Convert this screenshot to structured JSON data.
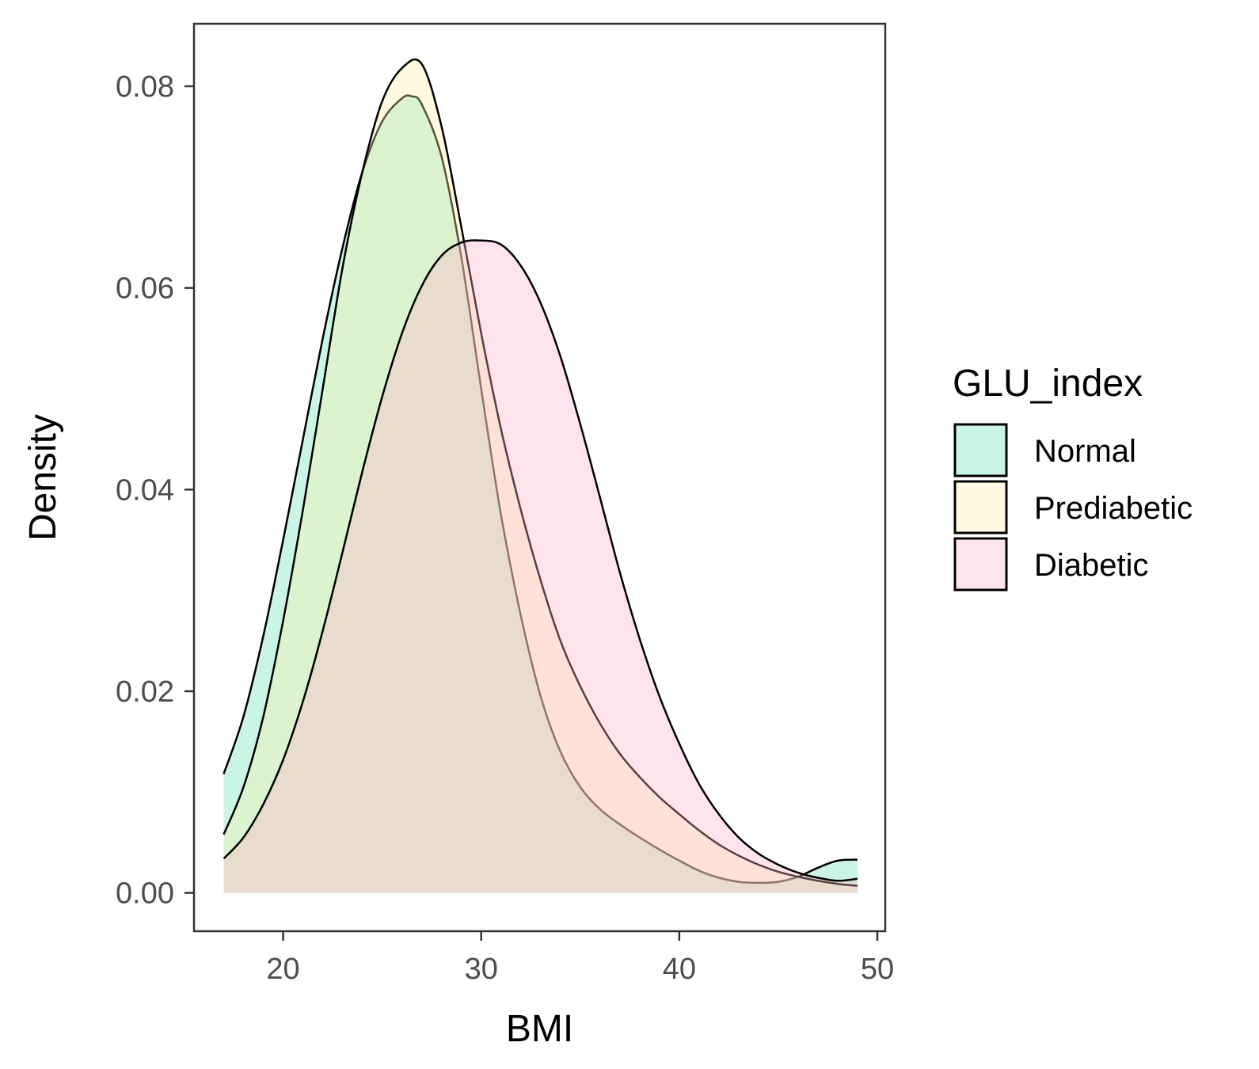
{
  "chart_data": {
    "type": "area",
    "subtype": "density",
    "title": "",
    "xlabel": "BMI",
    "ylabel": "Density",
    "xlim": [
      15.5,
      50.4
    ],
    "ylim": [
      -0.0038,
      0.0862
    ],
    "xticks": [
      "20",
      "30",
      "40",
      "50"
    ],
    "yticks": [
      "0.00",
      "0.02",
      "0.04",
      "0.06",
      "0.08"
    ],
    "grid": false,
    "legend": {
      "title": "GLU_index",
      "position": "right"
    },
    "fill_opacity": 0.35,
    "series": [
      {
        "name": "Normal",
        "color": "#66E0B0",
        "x": [
          17,
          18,
          19,
          20,
          21,
          22,
          23,
          24,
          25,
          26,
          26.5,
          27,
          28,
          29,
          30,
          31,
          32,
          33,
          34,
          35,
          36,
          37,
          38,
          39,
          40,
          41,
          42,
          43,
          44,
          45,
          46,
          47,
          48,
          49
        ],
        "values": [
          0.0118,
          0.0175,
          0.0255,
          0.035,
          0.045,
          0.055,
          0.064,
          0.0715,
          0.0765,
          0.0788,
          0.079,
          0.0782,
          0.073,
          0.063,
          0.05,
          0.0375,
          0.0275,
          0.0195,
          0.014,
          0.0105,
          0.0083,
          0.0068,
          0.0055,
          0.0043,
          0.0032,
          0.0022,
          0.0015,
          0.0011,
          0.001,
          0.0011,
          0.0016,
          0.0025,
          0.0032,
          0.0033
        ]
      },
      {
        "name": "Prediabetic",
        "color": "#FFF0A8",
        "x": [
          17,
          18,
          19,
          20,
          21,
          22,
          23,
          24,
          25,
          26,
          27,
          28,
          29,
          30,
          31,
          32,
          33,
          34,
          35,
          36,
          37,
          38,
          39,
          40,
          41,
          42,
          43,
          44,
          45,
          46,
          47,
          48,
          49
        ],
        "values": [
          0.0058,
          0.0105,
          0.0175,
          0.027,
          0.038,
          0.05,
          0.062,
          0.0715,
          0.0785,
          0.0818,
          0.0822,
          0.076,
          0.066,
          0.0555,
          0.046,
          0.038,
          0.031,
          0.025,
          0.0205,
          0.0168,
          0.0138,
          0.0115,
          0.0095,
          0.0078,
          0.0062,
          0.0048,
          0.0037,
          0.0028,
          0.0021,
          0.0016,
          0.0012,
          0.0009,
          0.0007
        ]
      },
      {
        "name": "Diabetic",
        "color": "#FFB3C6",
        "x": [
          17,
          18,
          19,
          20,
          21,
          22,
          23,
          24,
          25,
          26,
          27,
          28,
          29,
          30,
          31,
          32,
          33,
          34,
          35,
          36,
          37,
          38,
          39,
          40,
          41,
          42,
          43,
          44,
          45,
          46,
          47,
          48,
          49
        ],
        "values": [
          0.0034,
          0.0055,
          0.0088,
          0.0132,
          0.019,
          0.026,
          0.0338,
          0.0418,
          0.0492,
          0.0555,
          0.0602,
          0.0632,
          0.0645,
          0.0647,
          0.0643,
          0.0622,
          0.0585,
          0.0532,
          0.0465,
          0.0392,
          0.0318,
          0.0252,
          0.0195,
          0.0148,
          0.0108,
          0.0078,
          0.0055,
          0.0039,
          0.0028,
          0.002,
          0.0015,
          0.0012,
          0.0014
        ]
      }
    ]
  }
}
